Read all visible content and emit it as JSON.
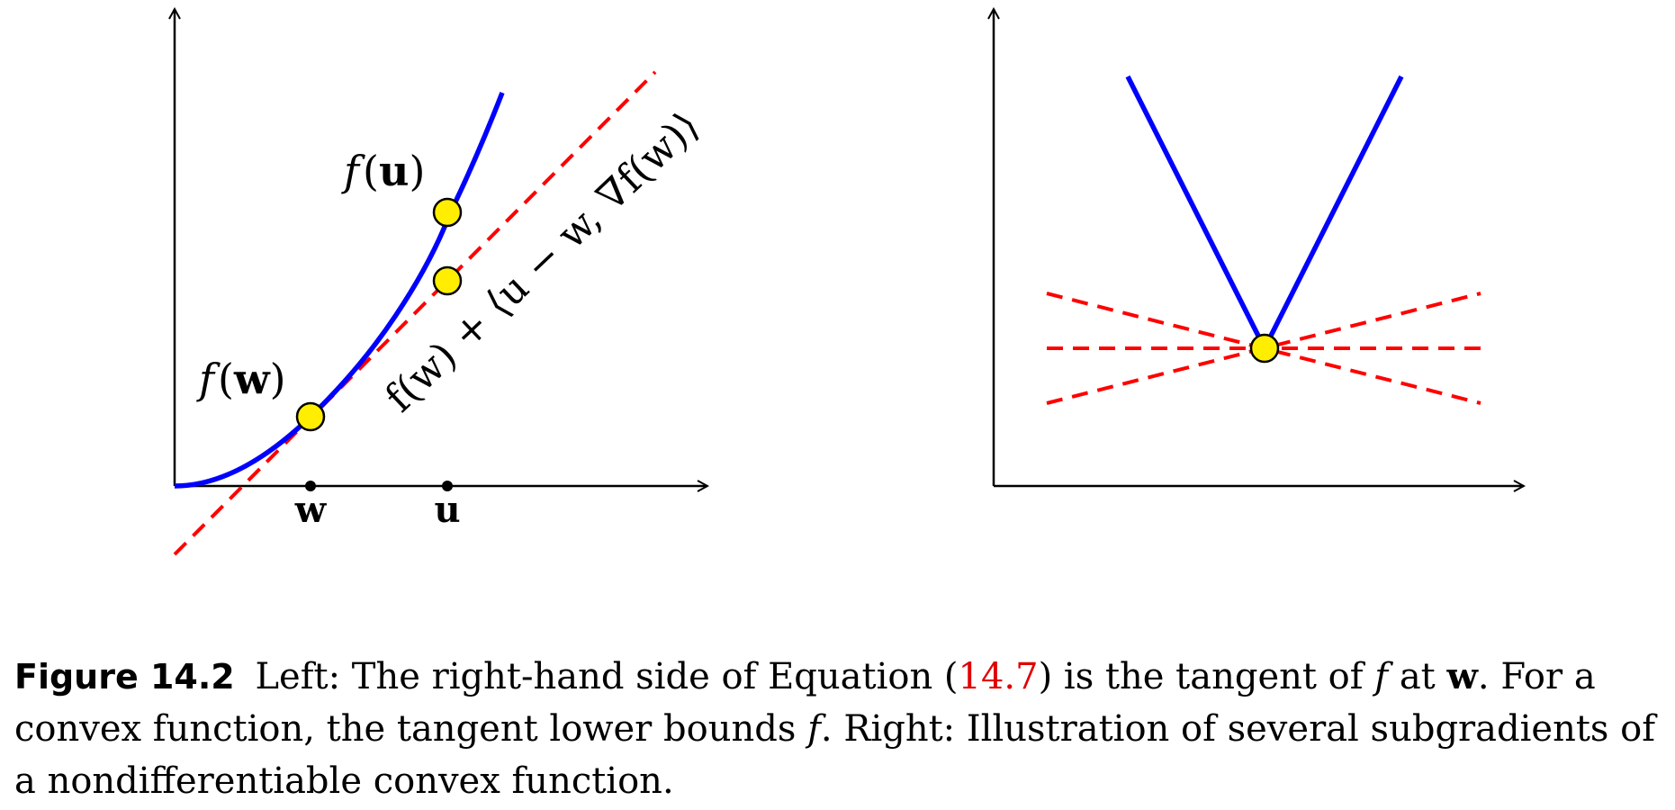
{
  "figure": {
    "left_panel": {
      "label_fu": {
        "f": "f",
        "open": "(",
        "var": "u",
        "close": ")"
      },
      "label_fw": {
        "f": "f",
        "open": "(",
        "var": "w",
        "close": ")"
      },
      "tangent_label": "f(w) + ⟨u − w, ∇f(w)⟩",
      "tick_w": "w",
      "tick_u": "u"
    },
    "right_panel": {}
  },
  "caption": {
    "label": "Figure 14.2",
    "seg1": "Left: The right-hand side of Equation (",
    "ref": "14.7",
    "seg2": ") is the tangent of ",
    "f1": "f",
    "seg3": " at ",
    "w": "w",
    "seg4": ". For a convex function, the tangent lower bounds ",
    "f2": "f",
    "seg5": ". Right: Illustration of several subgradients of a nondifferentiable convex function."
  },
  "colors": {
    "curve": "#0000ff",
    "tangent": "#ff0000",
    "point_fill": "#ffee00",
    "axis": "#000000"
  }
}
